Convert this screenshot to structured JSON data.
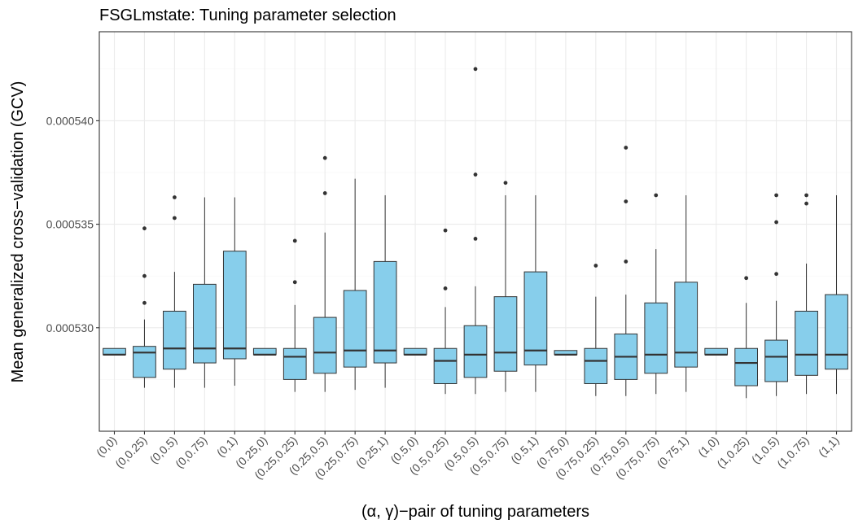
{
  "chart_data": {
    "type": "boxplot",
    "title": "FSGLmstate: Tuning parameter selection",
    "xlabel": "(α, γ)−pair of tuning parameters",
    "ylabel": "Mean generalized cross−validation (GCV)",
    "ylim": [
      0.000525,
      0.0005443
    ],
    "yticks": [
      0.00053,
      0.000535,
      0.00054
    ],
    "ytick_labels": [
      "0.000530",
      "0.000535",
      "0.000540"
    ],
    "grid": true,
    "fill_color": "#87ceeb",
    "outline_color": "#333333",
    "categories": [
      "(0,0)",
      "(0,0.25)",
      "(0,0.5)",
      "(0,0.75)",
      "(0,1)",
      "(0.25,0)",
      "(0.25,0.25)",
      "(0.25,0.5)",
      "(0.25,0.75)",
      "(0.25,1)",
      "(0.5,0)",
      "(0.5,0.25)",
      "(0.5,0.5)",
      "(0.5,0.75)",
      "(0.5,1)",
      "(0.75,0)",
      "(0.75,0.25)",
      "(0.75,0.5)",
      "(0.75,0.75)",
      "(0.75,1)",
      "(1,0)",
      "(1,0.25)",
      "(1,0.5)",
      "(1,0.75)",
      "(1,1)"
    ],
    "boxes": [
      {
        "whisker_low": 0.0005287,
        "q1": 0.0005287,
        "median": 0.0005287,
        "q3": 0.000529,
        "whisker_high": 0.000529,
        "outliers": []
      },
      {
        "whisker_low": 0.0005271,
        "q1": 0.0005276,
        "median": 0.0005288,
        "q3": 0.0005291,
        "whisker_high": 0.0005304,
        "outliers": [
          0.0005312,
          0.0005325,
          0.0005348
        ]
      },
      {
        "whisker_low": 0.0005271,
        "q1": 0.000528,
        "median": 0.000529,
        "q3": 0.0005308,
        "whisker_high": 0.0005327,
        "outliers": [
          0.0005353,
          0.0005363
        ]
      },
      {
        "whisker_low": 0.0005271,
        "q1": 0.0005283,
        "median": 0.000529,
        "q3": 0.0005321,
        "whisker_high": 0.0005363,
        "outliers": []
      },
      {
        "whisker_low": 0.0005272,
        "q1": 0.0005285,
        "median": 0.000529,
        "q3": 0.0005337,
        "whisker_high": 0.0005363,
        "outliers": []
      },
      {
        "whisker_low": 0.0005287,
        "q1": 0.0005287,
        "median": 0.0005287,
        "q3": 0.000529,
        "whisker_high": 0.000529,
        "outliers": []
      },
      {
        "whisker_low": 0.0005269,
        "q1": 0.0005275,
        "median": 0.0005286,
        "q3": 0.000529,
        "whisker_high": 0.0005311,
        "outliers": [
          0.0005322,
          0.0005342
        ]
      },
      {
        "whisker_low": 0.0005269,
        "q1": 0.0005278,
        "median": 0.0005288,
        "q3": 0.0005305,
        "whisker_high": 0.0005346,
        "outliers": [
          0.0005365,
          0.0005382
        ]
      },
      {
        "whisker_low": 0.000527,
        "q1": 0.0005281,
        "median": 0.0005289,
        "q3": 0.0005318,
        "whisker_high": 0.0005372,
        "outliers": []
      },
      {
        "whisker_low": 0.0005271,
        "q1": 0.0005283,
        "median": 0.0005289,
        "q3": 0.0005332,
        "whisker_high": 0.0005364,
        "outliers": []
      },
      {
        "whisker_low": 0.0005287,
        "q1": 0.0005287,
        "median": 0.0005287,
        "q3": 0.000529,
        "whisker_high": 0.000529,
        "outliers": []
      },
      {
        "whisker_low": 0.0005268,
        "q1": 0.0005273,
        "median": 0.0005284,
        "q3": 0.000529,
        "whisker_high": 0.000531,
        "outliers": [
          0.0005319,
          0.0005347
        ]
      },
      {
        "whisker_low": 0.0005268,
        "q1": 0.0005276,
        "median": 0.0005287,
        "q3": 0.0005301,
        "whisker_high": 0.000532,
        "outliers": [
          0.0005343,
          0.0005374,
          0.0005425
        ]
      },
      {
        "whisker_low": 0.0005269,
        "q1": 0.0005279,
        "median": 0.0005288,
        "q3": 0.0005315,
        "whisker_high": 0.0005364,
        "outliers": [
          0.000537
        ]
      },
      {
        "whisker_low": 0.0005269,
        "q1": 0.0005282,
        "median": 0.0005289,
        "q3": 0.0005327,
        "whisker_high": 0.0005364,
        "outliers": []
      },
      {
        "whisker_low": 0.0005287,
        "q1": 0.0005287,
        "median": 0.0005287,
        "q3": 0.0005289,
        "whisker_high": 0.0005289,
        "outliers": []
      },
      {
        "whisker_low": 0.0005267,
        "q1": 0.0005273,
        "median": 0.0005284,
        "q3": 0.000529,
        "whisker_high": 0.0005315,
        "outliers": [
          0.000533
        ]
      },
      {
        "whisker_low": 0.0005267,
        "q1": 0.0005275,
        "median": 0.0005286,
        "q3": 0.0005297,
        "whisker_high": 0.0005316,
        "outliers": [
          0.0005332,
          0.0005361,
          0.0005387
        ]
      },
      {
        "whisker_low": 0.0005268,
        "q1": 0.0005278,
        "median": 0.0005287,
        "q3": 0.0005312,
        "whisker_high": 0.0005338,
        "outliers": [
          0.0005364
        ]
      },
      {
        "whisker_low": 0.0005269,
        "q1": 0.0005281,
        "median": 0.0005288,
        "q3": 0.0005322,
        "whisker_high": 0.0005364,
        "outliers": []
      },
      {
        "whisker_low": 0.0005287,
        "q1": 0.0005287,
        "median": 0.0005287,
        "q3": 0.000529,
        "whisker_high": 0.000529,
        "outliers": []
      },
      {
        "whisker_low": 0.0005266,
        "q1": 0.0005272,
        "median": 0.0005283,
        "q3": 0.000529,
        "whisker_high": 0.0005312,
        "outliers": [
          0.0005324
        ]
      },
      {
        "whisker_low": 0.0005267,
        "q1": 0.0005274,
        "median": 0.0005286,
        "q3": 0.0005294,
        "whisker_high": 0.0005313,
        "outliers": [
          0.0005326,
          0.0005351,
          0.0005364
        ]
      },
      {
        "whisker_low": 0.0005268,
        "q1": 0.0005277,
        "median": 0.0005287,
        "q3": 0.0005308,
        "whisker_high": 0.0005331,
        "outliers": [
          0.000536,
          0.0005364
        ]
      },
      {
        "whisker_low": 0.0005268,
        "q1": 0.000528,
        "median": 0.0005287,
        "q3": 0.0005316,
        "whisker_high": 0.0005364,
        "outliers": []
      }
    ]
  }
}
